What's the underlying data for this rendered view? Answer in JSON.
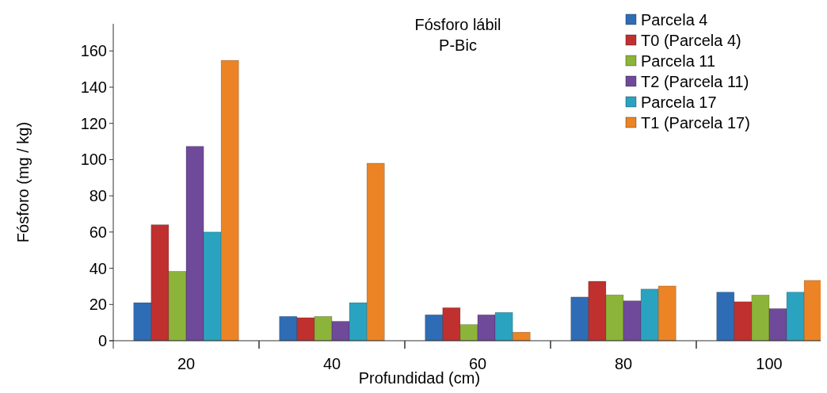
{
  "chart_data": {
    "type": "bar",
    "title": "Fósforo lábil",
    "subtitle": "P-Bic",
    "xlabel": "Profundidad (cm)",
    "ylabel": "Fósforo (mg / kg)",
    "categories": [
      "20",
      "40",
      "60",
      "80",
      "100"
    ],
    "series": [
      {
        "name": "Parcela 4",
        "color": "#2e6db5",
        "values": [
          21,
          13.4,
          14.3,
          24.1,
          26.8
        ]
      },
      {
        "name": "T0 (Parcela 4)",
        "color": "#c0302f",
        "values": [
          64,
          12.7,
          18.2,
          32.8,
          21.5
        ]
      },
      {
        "name": "Parcela 11",
        "color": "#8db43a",
        "values": [
          38.3,
          13.4,
          8.9,
          25.3,
          25.2
        ]
      },
      {
        "name": "T2 (Parcela 11)",
        "color": "#6f4a9a",
        "values": [
          107.3,
          10.7,
          14.3,
          22,
          17.7
        ]
      },
      {
        "name": "Parcela 17",
        "color": "#2aa3c0",
        "values": [
          60,
          21,
          15.6,
          28.5,
          26.8
        ]
      },
      {
        "name": "T1 (Parcela 17)",
        "color": "#ec8325",
        "values": [
          154.8,
          98,
          4.7,
          30.2,
          33.3
        ]
      }
    ],
    "ylim": [
      0,
      175
    ],
    "yticks": [
      0,
      20,
      40,
      60,
      80,
      100,
      120,
      140,
      160
    ],
    "grid": false,
    "legend": "top right"
  }
}
